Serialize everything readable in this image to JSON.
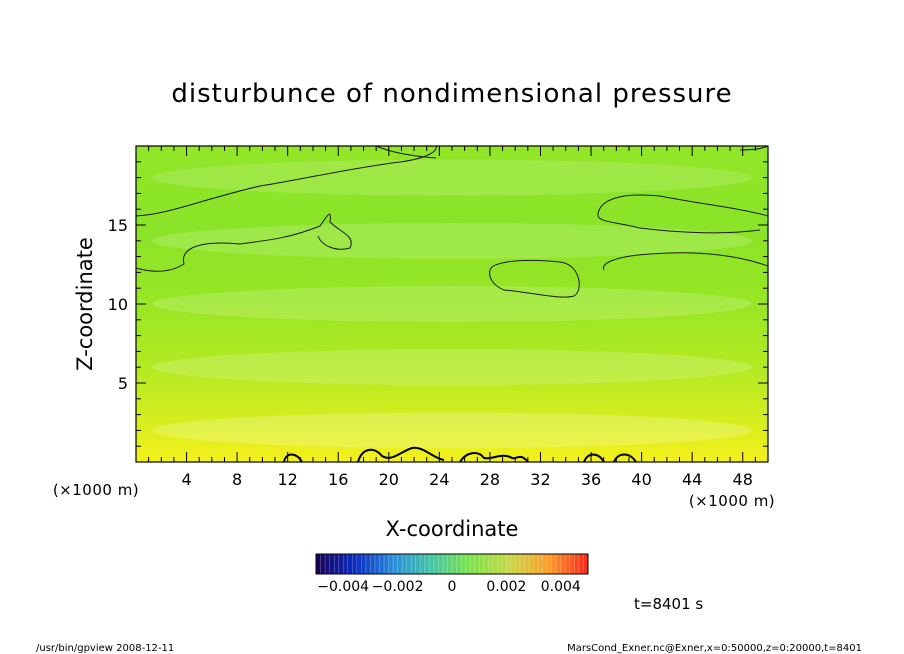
{
  "chart_data": {
    "type": "heatmap",
    "title": "disturbunce of nondimensional pressure",
    "xlabel": "X-coordinate",
    "ylabel": "Z-coordinate",
    "x_unit": "(×1000 m)",
    "y_unit": "(×1000 m)",
    "xlim": [
      0,
      50
    ],
    "ylim": [
      0,
      20
    ],
    "x_ticks": [
      4,
      8,
      12,
      16,
      20,
      24,
      28,
      32,
      36,
      40,
      44,
      48
    ],
    "y_ticks": [
      5,
      10,
      15
    ],
    "value_bands": [
      {
        "z": 2,
        "value": 0.0018
      },
      {
        "z": 6,
        "value": 0.0008
      },
      {
        "z": 10,
        "value": 0.0004
      },
      {
        "z": 14,
        "value": 0.0
      },
      {
        "z": 18,
        "value": -0.0002
      }
    ],
    "colorbar": {
      "min": -0.005,
      "max": 0.005,
      "ticks": [
        -0.004,
        -0.002,
        0,
        0.002,
        0.004
      ],
      "tick_labels": [
        "−0.004",
        "−0.002",
        "0",
        "0.002",
        "0.004"
      ],
      "colors": [
        "#1a0058",
        "#0a2cc0",
        "#2a8fdc",
        "#46c8a0",
        "#7fe24a",
        "#c8d848",
        "#ff9a2a",
        "#f8281c"
      ]
    },
    "time_label": "t=8401 s"
  },
  "footer": {
    "left": "/usr/bin/gpview   2008-12-11",
    "right": "MarsCond_Exner.nc@Exner,x=0:50000,z=0:20000,t=8401"
  }
}
